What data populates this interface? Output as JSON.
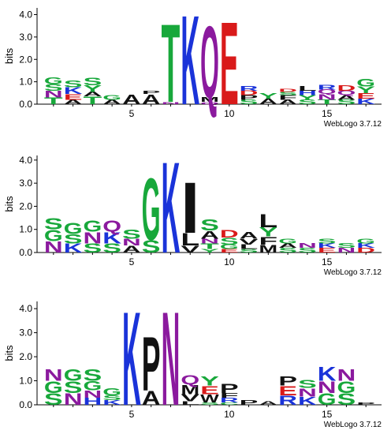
{
  "colors": {
    "G": "#18a83b",
    "S": "#18a83b",
    "T": "#18a83b",
    "Y": "#18a83b",
    "C": "#18a83b",
    "K": "#1a33d9",
    "R": "#1a33d9",
    "H": "#1a33d9",
    "D": "#d91a1a",
    "E": "#d91a1a",
    "Q": "#8b1a9e",
    "N": "#8b1a9e",
    "A": "#111111",
    "V": "#111111",
    "L": "#111111",
    "I": "#111111",
    "P": "#111111",
    "F": "#111111",
    "W": "#111111",
    "M": "#111111"
  },
  "chart_data": [
    {
      "type": "sequence-logo",
      "ylabel": "bits",
      "ylim": [
        0,
        4.3
      ],
      "yticks": [
        "0.0",
        "1.0",
        "2.0",
        "3.0",
        "4.0"
      ],
      "xticks": [
        {
          "pos": 5,
          "label": "5"
        },
        {
          "pos": 10,
          "label": "10"
        },
        {
          "pos": 15,
          "label": "15"
        }
      ],
      "xlim": [
        0.2,
        17.8
      ],
      "credit": "WebLogo 3.7.12",
      "positions": [
        {
          "pos": 1,
          "stack": [
            [
              "T",
              0.3
            ],
            [
              "N",
              0.3
            ],
            [
              "S",
              0.3
            ],
            [
              "G",
              0.3
            ]
          ]
        },
        {
          "pos": 2,
          "stack": [
            [
              "A",
              0.2
            ],
            [
              "E",
              0.25
            ],
            [
              "K",
              0.3
            ],
            [
              "S",
              0.3
            ]
          ]
        },
        {
          "pos": 3,
          "stack": [
            [
              "T",
              0.35
            ],
            [
              "A",
              0.2
            ],
            [
              "Y",
              0.3
            ],
            [
              "S",
              0.35
            ]
          ]
        },
        {
          "pos": 4,
          "stack": [
            [
              "A",
              0.2
            ],
            [
              "G",
              0.2
            ]
          ]
        },
        {
          "pos": 5,
          "stack": [
            [
              "A",
              0.45
            ]
          ]
        },
        {
          "pos": 6,
          "stack": [
            [
              "A",
              0.45
            ],
            [
              "P",
              0.15
            ]
          ]
        },
        {
          "pos": 7,
          "stack": [
            [
              "N",
              0.1
            ],
            [
              "T",
              3.6
            ]
          ]
        },
        {
          "pos": 8,
          "stack": [
            [
              "K",
              4.1
            ]
          ]
        },
        {
          "pos": 9,
          "stack": [
            [
              "Q",
              0.1
            ],
            [
              "M",
              0.2
            ],
            [
              "Q",
              3.3
            ]
          ]
        },
        {
          "pos": 10,
          "stack": [
            [
              "E",
              3.8
            ]
          ]
        },
        {
          "pos": 11,
          "stack": [
            [
              "S",
              0.2
            ],
            [
              "P",
              0.2
            ],
            [
              "D",
              0.2
            ],
            [
              "R",
              0.2
            ]
          ]
        },
        {
          "pos": 12,
          "stack": [
            [
              "A",
              0.25
            ],
            [
              "Y",
              0.25
            ]
          ]
        },
        {
          "pos": 13,
          "stack": [
            [
              "A",
              0.2
            ],
            [
              "F",
              0.2
            ],
            [
              "S",
              0.15
            ],
            [
              "D",
              0.15
            ]
          ]
        },
        {
          "pos": 14,
          "stack": [
            [
              "S",
              0.2
            ],
            [
              "Y",
              0.2
            ],
            [
              "H",
              0.2
            ],
            [
              "L",
              0.2
            ]
          ]
        },
        {
          "pos": 15,
          "stack": [
            [
              "T",
              0.2
            ],
            [
              "N",
              0.25
            ],
            [
              "Q",
              0.2
            ],
            [
              "R",
              0.2
            ]
          ]
        },
        {
          "pos": 16,
          "stack": [
            [
              "S",
              0.2
            ],
            [
              "A",
              0.2
            ],
            [
              "Q",
              0.2
            ],
            [
              "D",
              0.25
            ]
          ]
        },
        {
          "pos": 17,
          "stack": [
            [
              "K",
              0.25
            ],
            [
              "E",
              0.25
            ],
            [
              "Y",
              0.3
            ],
            [
              "G",
              0.35
            ]
          ]
        }
      ]
    },
    {
      "type": "sequence-logo",
      "ylabel": "bits",
      "ylim": [
        0,
        4.2
      ],
      "yticks": [
        "0.0",
        "1.0",
        "2.0",
        "3.0",
        "4.0"
      ],
      "xticks": [
        {
          "pos": 5,
          "label": "5"
        },
        {
          "pos": 10,
          "label": "10"
        },
        {
          "pos": 15,
          "label": "15"
        }
      ],
      "xlim": [
        0.2,
        17.8
      ],
      "credit": "WebLogo 3.7.12",
      "positions": [
        {
          "pos": 1,
          "stack": [
            [
              "N",
              0.5
            ],
            [
              "G",
              0.5
            ],
            [
              "S",
              0.5
            ]
          ]
        },
        {
          "pos": 2,
          "stack": [
            [
              "K",
              0.4
            ],
            [
              "S",
              0.4
            ],
            [
              "G",
              0.5
            ]
          ]
        },
        {
          "pos": 3,
          "stack": [
            [
              "S",
              0.4
            ],
            [
              "N",
              0.5
            ],
            [
              "G",
              0.5
            ]
          ]
        },
        {
          "pos": 4,
          "stack": [
            [
              "S",
              0.4
            ],
            [
              "K",
              0.5
            ],
            [
              "Q",
              0.5
            ]
          ]
        },
        {
          "pos": 5,
          "stack": [
            [
              "A",
              0.3
            ],
            [
              "N",
              0.3
            ],
            [
              "S",
              0.4
            ]
          ]
        },
        {
          "pos": 6,
          "stack": [
            [
              "S",
              0.55
            ],
            [
              "G",
              2.75
            ]
          ]
        },
        {
          "pos": 7,
          "stack": [
            [
              "K",
              4.05
            ]
          ]
        },
        {
          "pos": 8,
          "stack": [
            [
              "V",
              0.3
            ],
            [
              "L",
              0.55
            ],
            [
              "I",
              2.25
            ]
          ]
        },
        {
          "pos": 9,
          "stack": [
            [
              "Y",
              0.15
            ],
            [
              "T",
              0.25
            ],
            [
              "N",
              0.2
            ],
            [
              "A",
              0.35
            ],
            [
              "S",
              0.5
            ]
          ]
        },
        {
          "pos": 10,
          "stack": [
            [
              "E",
              0.15
            ],
            [
              "G",
              0.2
            ],
            [
              "S",
              0.3
            ],
            [
              "D",
              0.35
            ]
          ]
        },
        {
          "pos": 11,
          "stack": [
            [
              "S",
              0.15
            ],
            [
              "L",
              0.2
            ],
            [
              "V",
              0.25
            ],
            [
              "A",
              0.3
            ]
          ]
        },
        {
          "pos": 12,
          "stack": [
            [
              "M",
              0.35
            ],
            [
              "F",
              0.35
            ],
            [
              "Y",
              0.4
            ],
            [
              "L",
              0.6
            ]
          ]
        },
        {
          "pos": 13,
          "stack": [
            [
              "S",
              0.2
            ],
            [
              "A",
              0.2
            ],
            [
              "G",
              0.2
            ]
          ]
        },
        {
          "pos": 14,
          "stack": [
            [
              "S",
              0.2
            ],
            [
              "N",
              0.2
            ]
          ]
        },
        {
          "pos": 15,
          "stack": [
            [
              "E",
              0.2
            ],
            [
              "K",
              0.2
            ],
            [
              "S",
              0.2
            ]
          ]
        },
        {
          "pos": 16,
          "stack": [
            [
              "N",
              0.2
            ],
            [
              "S",
              0.2
            ]
          ]
        },
        {
          "pos": 17,
          "stack": [
            [
              "D",
              0.2
            ],
            [
              "K",
              0.2
            ],
            [
              "G",
              0.2
            ]
          ]
        }
      ]
    },
    {
      "type": "sequence-logo",
      "ylabel": "bits",
      "ylim": [
        0,
        4.3
      ],
      "yticks": [
        "0.0",
        "1.0",
        "2.0",
        "3.0",
        "4.0"
      ],
      "xticks": [
        {
          "pos": 5,
          "label": "5"
        },
        {
          "pos": 10,
          "label": "10"
        },
        {
          "pos": 15,
          "label": "15"
        }
      ],
      "xlim": [
        0.2,
        17.8
      ],
      "credit": "WebLogo 3.7.12",
      "positions": [
        {
          "pos": 1,
          "stack": [
            [
              "S",
              0.5
            ],
            [
              "G",
              0.5
            ],
            [
              "N",
              0.5
            ]
          ]
        },
        {
          "pos": 2,
          "stack": [
            [
              "N",
              0.5
            ],
            [
              "S",
              0.5
            ],
            [
              "G",
              0.5
            ]
          ]
        },
        {
          "pos": 3,
          "stack": [
            [
              "H",
              0.3
            ],
            [
              "N",
              0.3
            ],
            [
              "G",
              0.4
            ],
            [
              "S",
              0.5
            ]
          ]
        },
        {
          "pos": 4,
          "stack": [
            [
              "K",
              0.2
            ],
            [
              "S",
              0.2
            ],
            [
              "G",
              0.3
            ]
          ]
        },
        {
          "pos": 5,
          "stack": [
            [
              "K",
              4.0
            ]
          ]
        },
        {
          "pos": 6,
          "stack": [
            [
              "A",
              0.6
            ],
            [
              "P",
              2.3
            ]
          ]
        },
        {
          "pos": 7,
          "stack": [
            [
              "N",
              4.0
            ]
          ]
        },
        {
          "pos": 8,
          "stack": [
            [
              "L",
              0.15
            ],
            [
              "V",
              0.3
            ],
            [
              "M",
              0.4
            ],
            [
              "Q",
              0.4
            ]
          ]
        },
        {
          "pos": 9,
          "stack": [
            [
              "S",
              0.1
            ],
            [
              "W",
              0.35
            ],
            [
              "E",
              0.35
            ],
            [
              "Y",
              0.4
            ]
          ]
        },
        {
          "pos": 10,
          "stack": [
            [
              "C",
              0.1
            ],
            [
              "R",
              0.2
            ],
            [
              "F",
              0.2
            ],
            [
              "P",
              0.4
            ]
          ]
        },
        {
          "pos": 11,
          "stack": [
            [
              "P",
              0.2
            ]
          ]
        },
        {
          "pos": 12,
          "stack": [
            [
              "A",
              0.15
            ]
          ]
        },
        {
          "pos": 13,
          "stack": [
            [
              "R",
              0.4
            ],
            [
              "E",
              0.4
            ],
            [
              "P",
              0.4
            ]
          ]
        },
        {
          "pos": 14,
          "stack": [
            [
              "K",
              0.35
            ],
            [
              "N",
              0.35
            ],
            [
              "S",
              0.35
            ]
          ]
        },
        {
          "pos": 15,
          "stack": [
            [
              "G",
              0.5
            ],
            [
              "N",
              0.5
            ],
            [
              "K",
              0.6
            ]
          ]
        },
        {
          "pos": 16,
          "stack": [
            [
              "S",
              0.5
            ],
            [
              "G",
              0.5
            ],
            [
              "N",
              0.5
            ]
          ]
        },
        {
          "pos": 17,
          "stack": [
            [
              "P",
              0.1
            ]
          ]
        }
      ]
    }
  ]
}
